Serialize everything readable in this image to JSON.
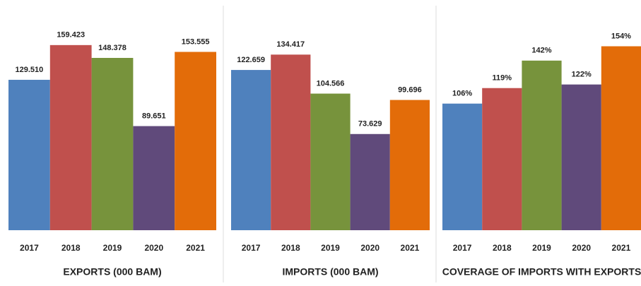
{
  "chart_data": [
    {
      "type": "bar",
      "title": "EXPORTS (000 BAM)",
      "categories": [
        "2017",
        "2018",
        "2019",
        "2020",
        "2021"
      ],
      "values": [
        129510,
        159423,
        148378,
        89651,
        153555
      ],
      "value_labels": [
        "129.510",
        "159.423",
        "148.378",
        "89.651",
        "153.555"
      ],
      "colors": [
        "#4f81bd",
        "#c0504d",
        "#77933c",
        "#604a7b",
        "#e36c09"
      ],
      "ylim": [
        0,
        180000
      ]
    },
    {
      "type": "bar",
      "title": "IMPORTS (000 BAM)",
      "categories": [
        "2017",
        "2018",
        "2019",
        "2020",
        "2021"
      ],
      "values": [
        122659,
        134417,
        104566,
        73629,
        99696
      ],
      "value_labels": [
        "122.659",
        "134.417",
        "104.566",
        "73.629",
        "99.696"
      ],
      "colors": [
        "#4f81bd",
        "#c0504d",
        "#77933c",
        "#604a7b",
        "#e36c09"
      ],
      "ylim": [
        0,
        160000
      ]
    },
    {
      "type": "bar",
      "title": "COVERAGE OF IMPORTS WITH EXPORTS",
      "categories": [
        "2017",
        "2018",
        "2019",
        "2020",
        "2021"
      ],
      "values": [
        106,
        119,
        142,
        122,
        154
      ],
      "value_labels": [
        "106%",
        "119%",
        "142%",
        "122%",
        "154%"
      ],
      "colors": [
        "#4f81bd",
        "#c0504d",
        "#77933c",
        "#604a7b",
        "#e36c09"
      ],
      "ylim": [
        0,
        175
      ]
    }
  ]
}
